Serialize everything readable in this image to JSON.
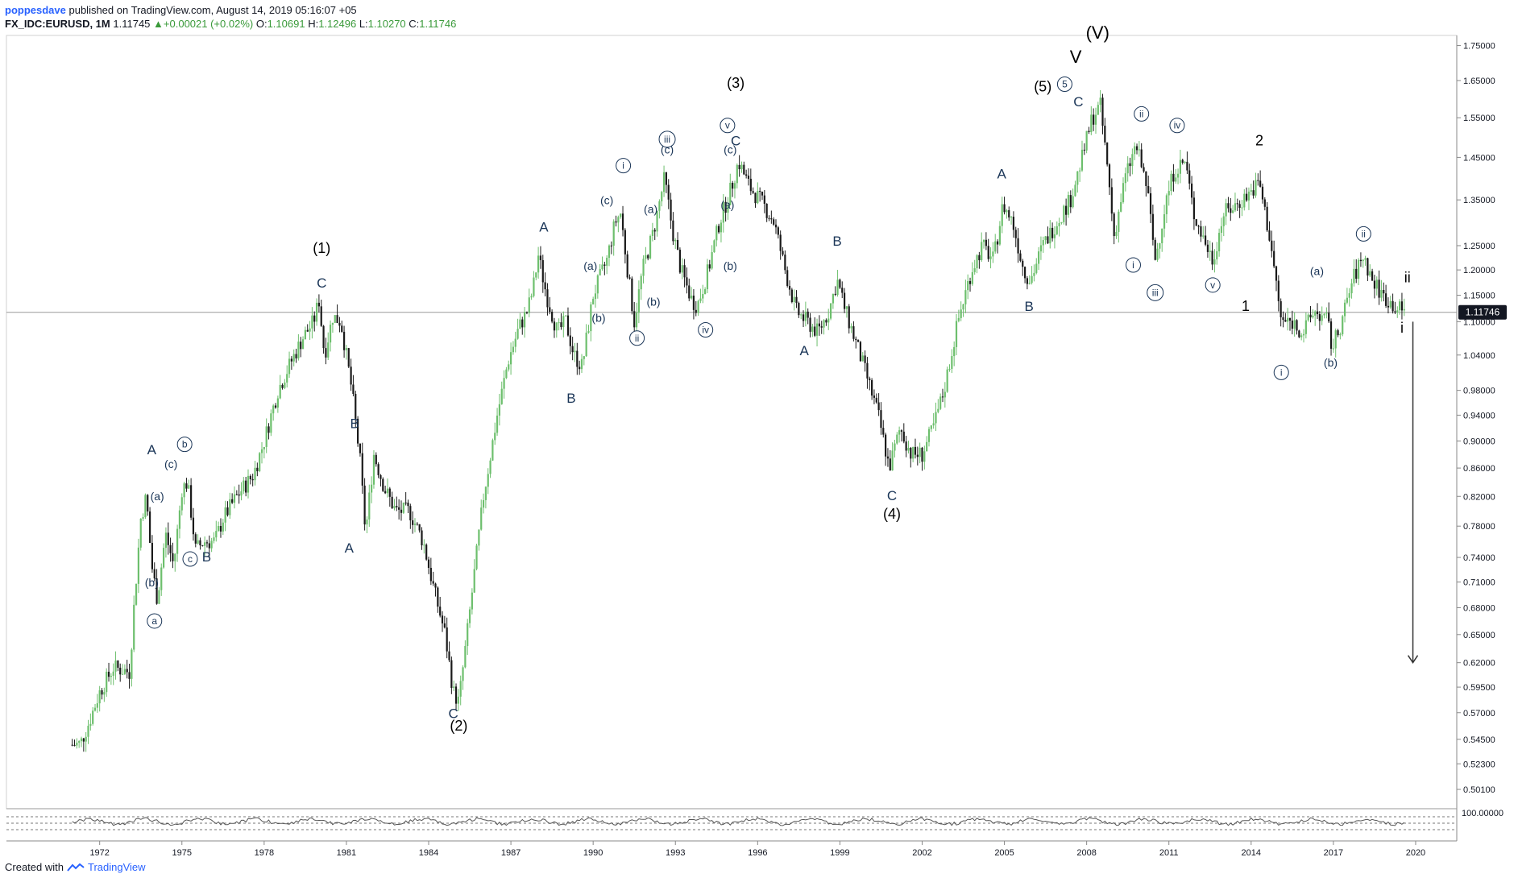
{
  "header": {
    "author": "poppesdave",
    "published": "published on TradingView.com, August 14, 2019 05:16:07 +05",
    "symbol": "FX_IDC:EURUSD, 1M",
    "last": "1.11745",
    "change": "+0.00021 (+0.02%)",
    "open_label": "O:",
    "open": "1.10691",
    "high_label": "H:",
    "high": "1.12496",
    "low_label": "L:",
    "low": "1.10270",
    "close_label": "C:",
    "close": "1.11746"
  },
  "footer": {
    "created_with": "Created with",
    "brand": "TradingView"
  },
  "colors": {
    "up": "#6dbf6d",
    "down": "#1a1a1a",
    "wave_label": "#1a3557",
    "grid": "#e6e6e6"
  },
  "chart_data": {
    "type": "candlestick",
    "symbol": "FX_IDC:EURUSD",
    "interval": "1M",
    "y_scale": "log",
    "ylim": [
      0.485,
      1.78
    ],
    "last_price_label": "1.11746",
    "y_ticks": [
      "1.75000",
      "1.65000",
      "1.55000",
      "1.45000",
      "1.35000",
      "1.25000",
      "1.20000",
      "1.15000",
      "1.10000",
      "1.04000",
      "0.98000",
      "0.94000",
      "0.90000",
      "0.86000",
      "0.82000",
      "0.78000",
      "0.74000",
      "0.71000",
      "0.68000",
      "0.65000",
      "0.62000",
      "0.59500",
      "0.57000",
      "0.54500",
      "0.52300",
      "0.50100"
    ],
    "x_ticks": [
      "1972",
      "1975",
      "1978",
      "1981",
      "1984",
      "1987",
      "1990",
      "1993",
      "1996",
      "1999",
      "2002",
      "2005",
      "2008",
      "2011",
      "2014",
      "2017",
      "2020"
    ],
    "oscillator_label": "100.00000",
    "price_path": [
      [
        1971.0,
        0.54
      ],
      [
        1971.3,
        0.541
      ],
      [
        1971.6,
        0.56
      ],
      [
        1972.0,
        0.59
      ],
      [
        1972.5,
        0.615
      ],
      [
        1972.9,
        0.612
      ],
      [
        1973.1,
        0.61
      ],
      [
        1973.2,
        0.66
      ],
      [
        1973.5,
        0.79
      ],
      [
        1973.7,
        0.82
      ],
      [
        1973.9,
        0.73
      ],
      [
        1974.1,
        0.69
      ],
      [
        1974.4,
        0.77
      ],
      [
        1974.7,
        0.73
      ],
      [
        1975.0,
        0.83
      ],
      [
        1975.2,
        0.84
      ],
      [
        1975.5,
        0.75
      ],
      [
        1975.8,
        0.76
      ],
      [
        1976.2,
        0.76
      ],
      [
        1976.5,
        0.79
      ],
      [
        1977.0,
        0.82
      ],
      [
        1977.6,
        0.85
      ],
      [
        1978.0,
        0.9
      ],
      [
        1978.5,
        0.98
      ],
      [
        1979.0,
        1.03
      ],
      [
        1979.4,
        1.07
      ],
      [
        1979.8,
        1.1
      ],
      [
        1980.0,
        1.14
      ],
      [
        1980.2,
        1.04
      ],
      [
        1980.5,
        1.11
      ],
      [
        1980.8,
        1.1
      ],
      [
        1981.2,
        0.98
      ],
      [
        1981.5,
        0.87
      ],
      [
        1981.7,
        0.77
      ],
      [
        1982.0,
        0.88
      ],
      [
        1982.4,
        0.83
      ],
      [
        1982.8,
        0.8
      ],
      [
        1983.3,
        0.8
      ],
      [
        1983.8,
        0.76
      ],
      [
        1984.2,
        0.7
      ],
      [
        1984.6,
        0.65
      ],
      [
        1984.9,
        0.59
      ],
      [
        1985.1,
        0.58
      ],
      [
        1985.4,
        0.65
      ],
      [
        1985.7,
        0.73
      ],
      [
        1986.0,
        0.82
      ],
      [
        1986.5,
        0.94
      ],
      [
        1986.9,
        1.03
      ],
      [
        1987.3,
        1.09
      ],
      [
        1987.6,
        1.12
      ],
      [
        1987.8,
        1.16
      ],
      [
        1988.0,
        1.23
      ],
      [
        1988.3,
        1.15
      ],
      [
        1988.7,
        1.08
      ],
      [
        1989.0,
        1.1
      ],
      [
        1989.3,
        1.04
      ],
      [
        1989.6,
        1.02
      ],
      [
        1990.0,
        1.15
      ],
      [
        1990.5,
        1.22
      ],
      [
        1990.8,
        1.3
      ],
      [
        1991.0,
        1.32
      ],
      [
        1991.3,
        1.18
      ],
      [
        1991.5,
        1.1
      ],
      [
        1991.8,
        1.2
      ],
      [
        1992.2,
        1.28
      ],
      [
        1992.6,
        1.4
      ],
      [
        1992.9,
        1.28
      ],
      [
        1993.2,
        1.2
      ],
      [
        1993.6,
        1.14
      ],
      [
        1993.8,
        1.13
      ],
      [
        1994.2,
        1.2
      ],
      [
        1994.6,
        1.3
      ],
      [
        1995.0,
        1.37
      ],
      [
        1995.3,
        1.44
      ],
      [
        1995.7,
        1.38
      ],
      [
        1996.2,
        1.34
      ],
      [
        1996.6,
        1.3
      ],
      [
        1997.0,
        1.2
      ],
      [
        1997.4,
        1.12
      ],
      [
        1997.8,
        1.1
      ],
      [
        1998.2,
        1.08
      ],
      [
        1998.6,
        1.12
      ],
      [
        1998.9,
        1.18
      ],
      [
        1999.2,
        1.12
      ],
      [
        1999.6,
        1.06
      ],
      [
        2000.0,
        1.0
      ],
      [
        2000.4,
        0.94
      ],
      [
        2000.8,
        0.86
      ],
      [
        2001.2,
        0.92
      ],
      [
        2001.6,
        0.88
      ],
      [
        2002.0,
        0.88
      ],
      [
        2002.4,
        0.92
      ],
      [
        2002.8,
        0.98
      ],
      [
        2003.3,
        1.1
      ],
      [
        2003.8,
        1.2
      ],
      [
        2004.2,
        1.25
      ],
      [
        2004.6,
        1.22
      ],
      [
        2004.95,
        1.34
      ],
      [
        2005.3,
        1.3
      ],
      [
        2005.7,
        1.2
      ],
      [
        2005.95,
        1.18
      ],
      [
        2006.4,
        1.25
      ],
      [
        2006.9,
        1.3
      ],
      [
        2007.4,
        1.35
      ],
      [
        2007.8,
        1.44
      ],
      [
        2008.2,
        1.55
      ],
      [
        2008.5,
        1.58
      ],
      [
        2008.8,
        1.4
      ],
      [
        2009.0,
        1.27
      ],
      [
        2009.4,
        1.4
      ],
      [
        2009.8,
        1.48
      ],
      [
        2010.2,
        1.38
      ],
      [
        2010.5,
        1.22
      ],
      [
        2010.9,
        1.35
      ],
      [
        2011.2,
        1.42
      ],
      [
        2011.6,
        1.44
      ],
      [
        2011.9,
        1.32
      ],
      [
        2012.3,
        1.26
      ],
      [
        2012.6,
        1.22
      ],
      [
        2013.0,
        1.32
      ],
      [
        2013.5,
        1.34
      ],
      [
        2014.0,
        1.37
      ],
      [
        2014.3,
        1.39
      ],
      [
        2014.7,
        1.26
      ],
      [
        2015.1,
        1.1
      ],
      [
        2015.5,
        1.1
      ],
      [
        2015.9,
        1.08
      ],
      [
        2016.3,
        1.12
      ],
      [
        2016.8,
        1.1
      ],
      [
        2016.95,
        1.05
      ],
      [
        2017.3,
        1.1
      ],
      [
        2017.7,
        1.18
      ],
      [
        2018.1,
        1.23
      ],
      [
        2018.4,
        1.18
      ],
      [
        2018.8,
        1.15
      ],
      [
        2019.2,
        1.13
      ],
      [
        2019.6,
        1.117
      ]
    ],
    "wave_labels": [
      {
        "t": "(1)",
        "x": 1980.1,
        "y": 1.235,
        "k": 1
      },
      {
        "t": "C",
        "x": 1980.1,
        "y": 1.165
      },
      {
        "t": "(2)",
        "x": 1985.1,
        "y": 0.553,
        "k": 1
      },
      {
        "t": "C",
        "x": 1984.9,
        "y": 0.565
      },
      {
        "t": "(3)",
        "x": 1995.2,
        "y": 1.63,
        "k": 1
      },
      {
        "t": "C",
        "x": 1995.2,
        "y": 1.48
      },
      {
        "t": "(4)",
        "x": 2000.9,
        "y": 0.79,
        "k": 1
      },
      {
        "t": "C",
        "x": 2000.9,
        "y": 0.815
      },
      {
        "t": "(5)",
        "x": 2006.4,
        "y": 1.62,
        "k": 1
      },
      {
        "t": "V",
        "x": 2007.6,
        "y": 1.7,
        "k": 1
      },
      {
        "t": "(V)",
        "x": 2008.4,
        "y": 1.77,
        "k": 1
      },
      {
        "t": "A",
        "x": 1973.9,
        "y": 0.88
      },
      {
        "t": "B",
        "x": 1975.9,
        "y": 0.735
      },
      {
        "t": "A",
        "x": 1981.1,
        "y": 0.746
      },
      {
        "t": "B",
        "x": 1981.3,
        "y": 0.92
      },
      {
        "t": "A",
        "x": 1988.2,
        "y": 1.28
      },
      {
        "t": "B",
        "x": 1989.2,
        "y": 0.96
      },
      {
        "t": "A",
        "x": 1997.7,
        "y": 1.04
      },
      {
        "t": "B",
        "x": 1998.9,
        "y": 1.25
      },
      {
        "t": "A",
        "x": 2004.9,
        "y": 1.4
      },
      {
        "t": "B",
        "x": 2005.9,
        "y": 1.12
      },
      {
        "t": "C",
        "x": 2007.7,
        "y": 1.58
      },
      {
        "t": "1",
        "x": 2013.8,
        "y": 1.12,
        "k": 1
      },
      {
        "t": "2",
        "x": 2014.3,
        "y": 1.48,
        "k": 1
      },
      {
        "t": "i",
        "x": 2019.5,
        "y": 1.08,
        "k": 1
      },
      {
        "t": "ii",
        "x": 2019.7,
        "y": 1.175,
        "k": 1
      },
      {
        "t": "(a)",
        "x": 1974.1,
        "y": 0.815
      },
      {
        "t": "(b)",
        "x": 1973.9,
        "y": 0.705
      },
      {
        "t": "(c)",
        "x": 1974.6,
        "y": 0.86
      },
      {
        "t": "(a)",
        "x": 1989.9,
        "y": 1.2
      },
      {
        "t": "(b)",
        "x": 1990.2,
        "y": 1.1
      },
      {
        "t": "(c)",
        "x": 1990.5,
        "y": 1.34
      },
      {
        "t": "(a)",
        "x": 1992.1,
        "y": 1.32
      },
      {
        "t": "(b)",
        "x": 1992.2,
        "y": 1.13
      },
      {
        "t": "(c)",
        "x": 1992.7,
        "y": 1.46
      },
      {
        "t": "(a)",
        "x": 1994.9,
        "y": 1.33
      },
      {
        "t": "(b)",
        "x": 1995.0,
        "y": 1.2
      },
      {
        "t": "(c)",
        "x": 1995.0,
        "y": 1.46
      },
      {
        "t": "(a)",
        "x": 2016.4,
        "y": 1.19
      },
      {
        "t": "(b)",
        "x": 2016.9,
        "y": 1.02
      }
    ],
    "circled_labels": [
      {
        "t": "a",
        "x": 1974.0,
        "y": 0.665
      },
      {
        "t": "b",
        "x": 1975.1,
        "y": 0.895
      },
      {
        "t": "c",
        "x": 1975.3,
        "y": 0.738
      },
      {
        "t": "i",
        "x": 1991.1,
        "y": 1.43
      },
      {
        "t": "ii",
        "x": 1991.6,
        "y": 1.07
      },
      {
        "t": "iii",
        "x": 1992.7,
        "y": 1.495
      },
      {
        "t": "iv",
        "x": 1994.1,
        "y": 1.085
      },
      {
        "t": "v",
        "x": 1994.9,
        "y": 1.53
      },
      {
        "t": "5",
        "x": 2007.2,
        "y": 1.64
      },
      {
        "t": "i",
        "x": 2009.7,
        "y": 1.21
      },
      {
        "t": "ii",
        "x": 2010.0,
        "y": 1.56
      },
      {
        "t": "iii",
        "x": 2010.5,
        "y": 1.155
      },
      {
        "t": "iv",
        "x": 2011.3,
        "y": 1.53
      },
      {
        "t": "v",
        "x": 2012.6,
        "y": 1.17
      },
      {
        "t": "i",
        "x": 2015.1,
        "y": 1.01
      },
      {
        "t": "ii",
        "x": 2018.1,
        "y": 1.275
      }
    ],
    "arrow": {
      "x": 2019.9,
      "from": 1.1,
      "to": 0.62
    }
  }
}
